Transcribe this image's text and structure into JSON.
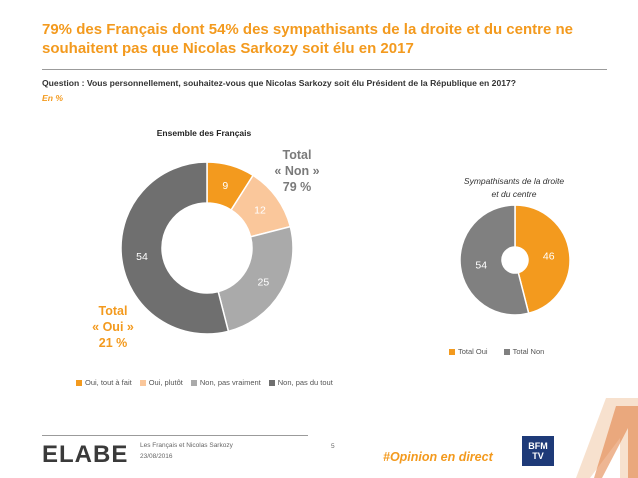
{
  "title": "79% des Français dont 54% des sympathisants de la droite et du centre ne souhaitent pas que Nicolas Sarkozy soit élu en 2017",
  "question": "Question : Vous personnellement, souhaitez-vous que Nicolas Sarkozy soit élu Président de la République en 2017?",
  "unit": "En %",
  "colors": {
    "accent": "#f39a1e",
    "oui_tout_a_fait": "#f39a1e",
    "oui_plutot": "#fac79b",
    "non_pas_vraiment": "#aaaaaa",
    "non_pas_du_tout": "#6f6f6f"
  },
  "chart_data": [
    {
      "type": "pie",
      "title": "Ensemble des Français",
      "categories": [
        "Oui, tout à fait",
        "Oui, plutôt",
        "Non, pas vraiment",
        "Non, pas du tout"
      ],
      "values": [
        9,
        12,
        25,
        54
      ],
      "colors": [
        "#f39a1e",
        "#fac79b",
        "#aaaaaa",
        "#6f6f6f"
      ],
      "annotations": {
        "non": [
          "Total",
          "« Non »",
          "79 %"
        ],
        "oui": [
          "Total",
          "« Oui »",
          "21 %"
        ]
      },
      "legend": "bottom"
    },
    {
      "type": "pie",
      "title": [
        "Sympathisants de la droite",
        "et du centre"
      ],
      "categories": [
        "Total Oui",
        "Total Non"
      ],
      "values": [
        46,
        54
      ],
      "colors": [
        "#f39a1e",
        "#808080"
      ],
      "legend": "bottom"
    }
  ],
  "footer": {
    "logo": "ELABE",
    "subject": "Les Français et Nicolas Sarkozy",
    "date": "23/08/2016",
    "page": "5",
    "hashtag": "#Opinion en direct",
    "partner_logo": [
      "BFM",
      "TV"
    ]
  }
}
